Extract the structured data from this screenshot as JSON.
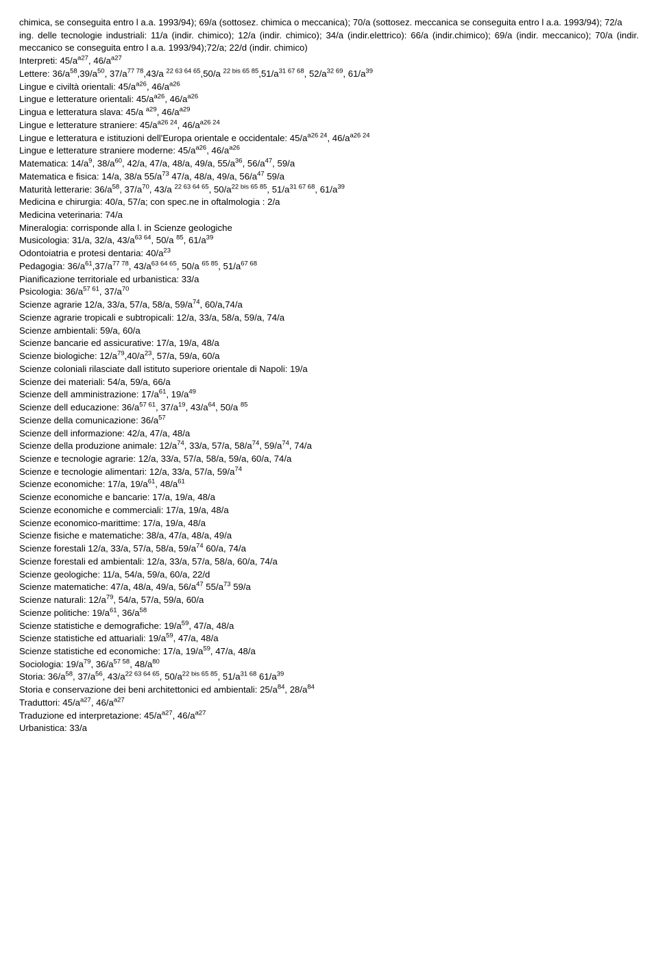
{
  "lines": [
    {
      "html": "chimica, se conseguita entro l&nbsp;a.a. 1993/94); 69/a (sottosez. chimica o meccanica); 70/a (sottosez. meccanica se conseguita entro l&nbsp;a.a. 1993/94); 72/a"
    },
    {
      "html": "ing. delle tecnologie industriali: 11/a (indir. chimico); 12/a (indir. chimico); 34/a (indir.elettrico): 66/a (indir.chimico); 69/a (indir. meccanico); 70/a (indir. meccanico se conseguita entro l&nbsp;a.a. 1993/94);72/a; 22/d (indir. chimico)",
      "style": "text-align:justify"
    },
    {
      "html": "Interpreti: 45/a<sup>a27</sup>, 46/a<sup>a27</sup>",
      "style": "text-align:left"
    },
    {
      "html": "Lettere: 36/a<sup>58</sup>,39/a<sup>50</sup>, 37/a<sup>77 78</sup>,43/a <sup>22 63 64 65</sup>,50/a <sup>22 bis 65 85</sup>,51/a<sup>31 67 68</sup>, 52/a<sup>32 69</sup>, 61/a<sup>39</sup>",
      "style": "text-align:left"
    },
    {
      "html": "Lingue e civiltà orientali: 45/a<sup>a26</sup>, 46/a<sup>a26</sup>",
      "style": "text-align:left"
    },
    {
      "html": "Lingue e letterature orientali: 45/a<sup>a26</sup>, 46/a<sup>a26</sup>",
      "style": "text-align:left"
    },
    {
      "html": "Lingua e letteratura slava: 45/a <sup>a29</sup>, 46/a<sup>a29</sup>",
      "style": "text-align:left"
    },
    {
      "html": "Lingue e letterature straniere: 45/a<sup>a26 24</sup>, 46/a<sup>a26 24</sup>",
      "style": "text-align:left"
    },
    {
      "html": "Lingue e letteratura e istituzioni dell'Europa orientale e occidentale: 45/a<sup>a26 24</sup>, 46/a<sup>a26 24</sup>",
      "style": "text-align:left"
    },
    {
      "html": "Lingue e letterature straniere moderne: 45/a<sup>a26</sup>, 46/a<sup>a26</sup>",
      "style": "text-align:left"
    },
    {
      "html": "Matematica: 14/a<sup>9</sup>, 38/a<sup>60</sup>, 42/a, 47/a, 48/a, 49/a, 55/a<sup>36</sup>, 56/a<sup>47</sup>, 59/a",
      "style": "text-align:left"
    },
    {
      "html": "Matematica e fisica: 14/a, 38/a 55/a<sup>73</sup> 47/a, 48/a, 49/a, 56/a<sup>47</sup> 59/a",
      "style": "text-align:left"
    },
    {
      "html": "Maturità letterarie: 36/a<sup>58</sup>, 37/a<sup>70</sup>, 43/a <sup>22  63 64 65</sup>, 50/a<sup>22  bis  65 85</sup>, 51/a<sup>31 67 68</sup>, 61/a<sup>39</sup>",
      "style": "text-align:left"
    },
    {
      "html": "Medicina e chirurgia: 40/a, 57/a; con spec.ne in oftalmologia : 2/a",
      "style": "text-align:left"
    },
    {
      "html": "Medicina veterinaria: 74/a",
      "style": "text-align:left"
    },
    {
      "html": "Mineralogia: corrisponde alla l. in Scienze geologiche",
      "style": "text-align:left"
    },
    {
      "html": "Musicologia: 31/a, 32/a, 43/a<sup>63 64</sup>, 50/a <sup>85</sup>, 61/a<sup>39</sup>",
      "style": "text-align:left"
    },
    {
      "html": "Odontoiatria e protesi dentaria: 40/a<sup>23</sup>",
      "style": "text-align:left"
    },
    {
      "html": "Pedagogia: 36/a<sup>61</sup>,37/a<sup>77 78</sup>, 43/a<sup>63 64 65</sup>, 50/a  <sup>65 85</sup>, 51/a<sup>67 68</sup>",
      "style": "text-align:left"
    },
    {
      "html": "Pianificazione territoriale ed urbanistica: 33/a",
      "style": "text-align:left"
    },
    {
      "html": "Psicologia: 36/a<sup>57 61</sup>, 37/a<sup>70</sup>",
      "style": "text-align:left"
    },
    {
      "html": "Scienze  agrarie 12/a, 33/a, 57/a, 58/a, 59/a<sup>74</sup>, 60/a,74/a",
      "style": "text-align:left"
    },
    {
      "html": "Scienze agrarie tropicali e subtropicali: 12/a, 33/a, 58/a, 59/a, 74/a",
      "style": "text-align:left"
    },
    {
      "html": "Scienze ambientali: 59/a, 60/a",
      "style": "text-align:left"
    },
    {
      "html": "Scienze bancarie ed assicurative: 17/a, 19/a, 48/a",
      "style": "text-align:left"
    },
    {
      "html": "Scienze biologiche: 12/a<sup>79</sup>,40/a<sup>23</sup>, 57/a, 59/a, 60/a",
      "style": "text-align:left"
    },
    {
      "html": "Scienze coloniali rilasciate dall&nbsp;istituto superiore orientale di Napoli: 19/a",
      "style": "text-align:left"
    },
    {
      "html": "Scienze dei materiali: 54/a, 59/a, 66/a",
      "style": "text-align:left"
    },
    {
      "html": "Scienze dell&nbsp;amministrazione: 17/a<sup>61</sup>, 19/a<sup>49</sup>",
      "style": "text-align:left"
    },
    {
      "html": "Scienze dell&nbsp;educazione: 36/a<sup>57 61</sup>, 37/a<sup>19</sup>, 43/a<sup>64</sup>, 50/a <sup>85</sup>",
      "style": "text-align:left"
    },
    {
      "html": "Scienze della comunicazione: 36/a<sup>57</sup>",
      "style": "text-align:left"
    },
    {
      "html": "Scienze dell&nbsp;informazione: 42/a, 47/a, 48/a",
      "style": "text-align:left"
    },
    {
      "html": "Scienze della produzione animale: 12/a<sup>74</sup>, 33/a, 57/a, 58/a<sup>74</sup>, 59/a<sup>74</sup>, 74/a",
      "style": "text-align:left"
    },
    {
      "html": "Scienze e tecnologie agrarie: 12/a, 33/a, 57/a, 58/a, 59/a, 60/a, 74/a",
      "style": "text-align:left"
    },
    {
      "html": "Scienze e tecnologie alimentari: 12/a, 33/a, 57/a, 59/a<sup>74</sup>",
      "style": "text-align:left"
    },
    {
      "html": "Scienze economiche: 17/a, 19/a<sup>61</sup>, 48/a<sup>61</sup>",
      "style": "text-align:left"
    },
    {
      "html": "Scienze economiche e bancarie: 17/a, 19/a, 48/a",
      "style": "text-align:left"
    },
    {
      "html": "Scienze economiche e commerciali: 17/a, 19/a, 48/a",
      "style": "text-align:left"
    },
    {
      "html": "Scienze economico-marittime: 17/a, 19/a, 48/a",
      "style": "text-align:left"
    },
    {
      "html": "Scienze fisiche e matematiche: 38/a, 47/a, 48/a, 49/a",
      "style": "text-align:left"
    },
    {
      "html": "Scienze forestali  12/a, 33/a, 57/a, 58/a, 59/a<sup>74</sup>  60/a, 74/a",
      "style": "text-align:left"
    },
    {
      "html": "Scienze forestali ed ambientali: 12/a, 33/a, 57/a, 58/a, 60/a, 74/a",
      "style": "text-align:left"
    },
    {
      "html": "Scienze geologiche: 11/a, 54/a, 59/a, 60/a, 22/d",
      "style": "text-align:left"
    },
    {
      "html": "Scienze matematiche:  47/a, 48/a, 49/a, 56/a<sup>47</sup> 55/a<sup>73</sup> 59/a",
      "style": "text-align:left"
    },
    {
      "html": "Scienze naturali: 12/a<sup>79</sup>, 54/a, 57/a, 59/a, 60/a",
      "style": "text-align:left"
    },
    {
      "html": "Scienze politiche: 19/a<sup>61</sup>, 36/a<sup>58</sup>",
      "style": "text-align:left"
    },
    {
      "html": "Scienze statistiche e demografiche: 19/a<sup>59</sup>, 47/a, 48/a",
      "style": "text-align:left"
    },
    {
      "html": "Scienze statistiche ed attuariali: 19/a<sup>59</sup>, 47/a, 48/a",
      "style": "text-align:left"
    },
    {
      "html": "Scienze statistiche ed economiche: 17/a, 19/a<sup>59</sup>, 47/a, 48/a",
      "style": "text-align:left"
    },
    {
      "html": "Sociologia: 19/a<sup>79</sup>, 36/a<sup>57 58</sup>, 48/a<sup>80</sup>",
      "style": "text-align:left"
    },
    {
      "html": "Storia: 36/a<sup>58</sup>, 37/a<sup>56</sup>, 43/a<sup>22  63 64 65</sup>, 50/a<sup>22 bis  65 85</sup>, 51/a<sup>31 68</sup> 61/a<sup>39</sup>",
      "style": "text-align:left"
    },
    {
      "html": "Storia e conservazione dei beni architettonici ed ambientali: 25/a<sup>84</sup>, 28/a<sup>84</sup>",
      "style": "text-align:left"
    },
    {
      "html": "Traduttori: 45/a<sup>a27</sup>, 46/a<sup>a27</sup>",
      "style": "text-align:left"
    },
    {
      "html": "Traduzione ed interpretazione: 45/a<sup>a27</sup>, 46/a<sup>a27</sup>",
      "style": "text-align:left"
    },
    {
      "html": "Urbanistica: 33/a",
      "style": "text-align:left"
    }
  ]
}
